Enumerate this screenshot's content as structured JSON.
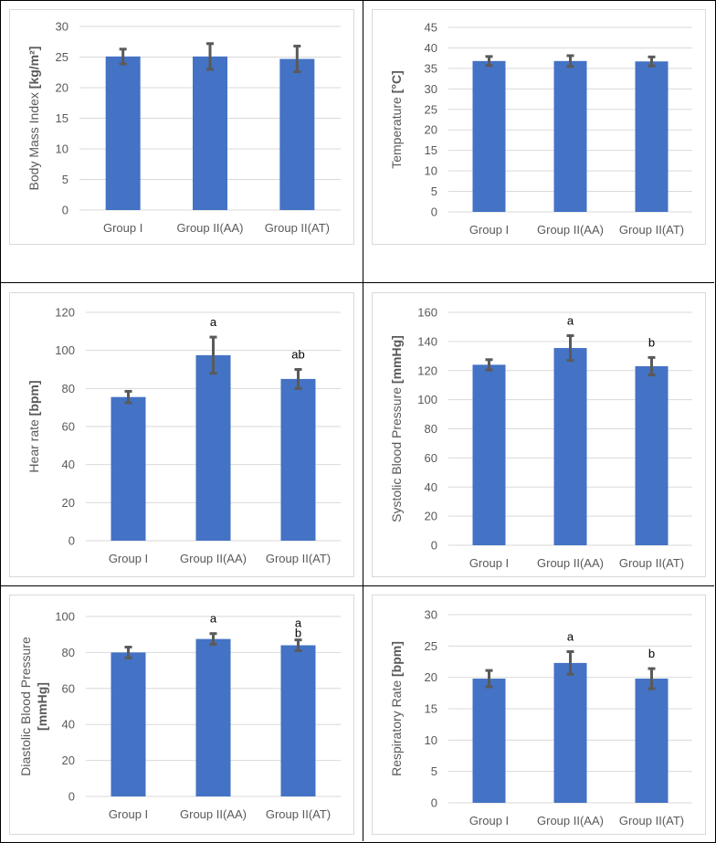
{
  "colors": {
    "bar": "#4472C4",
    "error": "#5a5a5a",
    "axis": "#d9d9d9",
    "text": "#595959",
    "letter": "#000000"
  },
  "chart_data": [
    {
      "type": "bar",
      "ylabel": "Body Mass Index [kg/m²]",
      "ylabel_plain": "Body Mass Index ",
      "ylabel_unit": "[kg/m²]",
      "categories": [
        "Group I",
        "Group II(AA)",
        "Group II(AT)"
      ],
      "values": [
        25.1,
        25.1,
        24.7
      ],
      "errors": [
        1.2,
        2.1,
        2.1
      ],
      "letters": [
        "",
        "",
        ""
      ],
      "ylim": [
        0,
        30
      ],
      "yticks": [
        0,
        5,
        10,
        15,
        20,
        25,
        30
      ]
    },
    {
      "type": "bar",
      "ylabel": "Temperature [°C]",
      "ylabel_plain": "Temperature ",
      "ylabel_unit": "[°C]",
      "categories": [
        "Group I",
        "Group II(AA)",
        "Group II(AT)"
      ],
      "values": [
        36.8,
        36.8,
        36.7
      ],
      "errors": [
        1.1,
        1.3,
        1.1
      ],
      "letters": [
        "",
        "",
        ""
      ],
      "ylim": [
        0,
        45
      ],
      "yticks": [
        0,
        5,
        10,
        15,
        20,
        25,
        30,
        35,
        40,
        45
      ]
    },
    {
      "type": "bar",
      "ylabel": "Hear rate [bpm]",
      "ylabel_plain": "Hear rate ",
      "ylabel_unit": "[bpm]",
      "categories": [
        "Group I",
        "Group II(AA)",
        "Group II(AT)"
      ],
      "values": [
        75.5,
        97.5,
        85
      ],
      "errors": [
        3,
        9.5,
        5
      ],
      "letters": [
        "",
        "a",
        "ab"
      ],
      "ylim": [
        0,
        120
      ],
      "yticks": [
        0,
        20,
        40,
        60,
        80,
        100,
        120
      ]
    },
    {
      "type": "bar",
      "ylabel": "Systolic Blood Pressure [mmHg]",
      "ylabel_plain": "Systolic Blood Pressure ",
      "ylabel_unit": "[mmHg]",
      "categories": [
        "Group I",
        "Group II(AA)",
        "Group II(AT)"
      ],
      "values": [
        124,
        135.5,
        123
      ],
      "errors": [
        3.5,
        8.5,
        6
      ],
      "letters": [
        "",
        "a",
        "b"
      ],
      "ylim": [
        0,
        160
      ],
      "yticks": [
        0,
        20,
        40,
        60,
        80,
        100,
        120,
        140,
        160
      ]
    },
    {
      "type": "bar",
      "ylabel": "Diastolic Blood Pressure [mmHg]",
      "ylabel_plain": "Diastolic Blood Pressure",
      "ylabel_unit": "[mmHg]",
      "categories": [
        "Group I",
        "Group II(AA)",
        "Group II(AT)"
      ],
      "values": [
        80,
        87.5,
        84
      ],
      "errors": [
        3,
        3,
        3
      ],
      "letters": [
        "",
        "a",
        "a\nb"
      ],
      "ylim": [
        0,
        100
      ],
      "yticks": [
        0,
        20,
        40,
        60,
        80,
        100
      ]
    },
    {
      "type": "bar",
      "ylabel": "Respiratory Rate [bpm]",
      "ylabel_plain": "Respiratory Rate ",
      "ylabel_unit": "[bpm]",
      "categories": [
        "Group I",
        "Group II(AA)",
        "Group II(AT)"
      ],
      "values": [
        19.8,
        22.3,
        19.8
      ],
      "errors": [
        1.3,
        1.8,
        1.6
      ],
      "letters": [
        "",
        "a",
        "b"
      ],
      "ylim": [
        0,
        30
      ],
      "yticks": [
        0,
        5,
        10,
        15,
        20,
        25,
        30
      ]
    }
  ]
}
